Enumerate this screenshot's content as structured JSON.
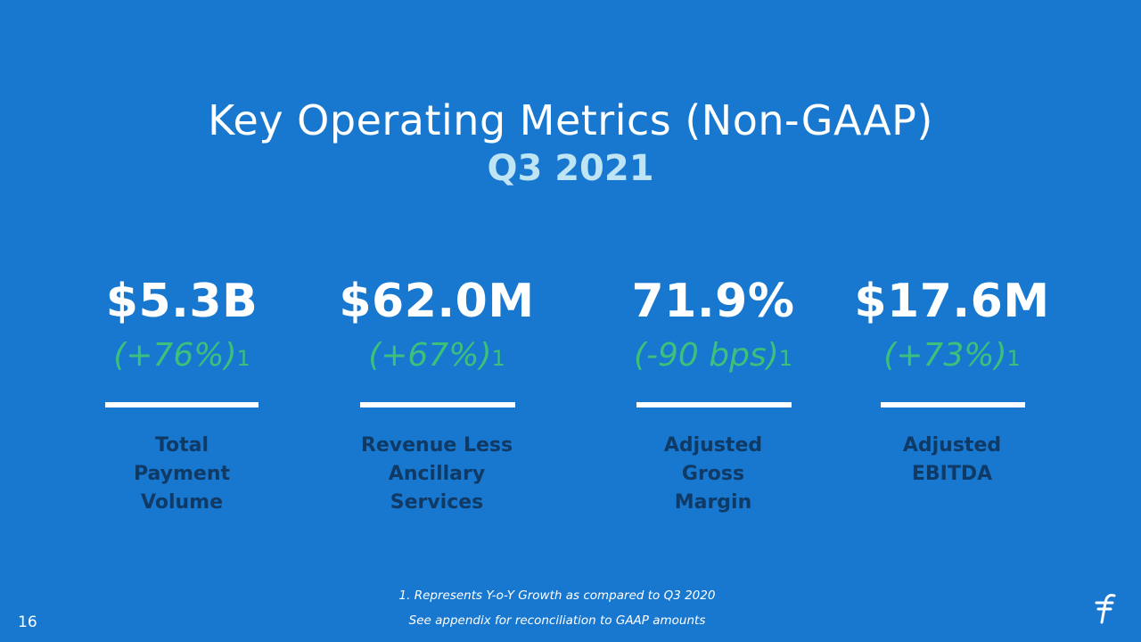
{
  "slide": {
    "title": "Key Operating Metrics (Non-GAAP)",
    "subtitle": "Q3 2021",
    "page_number": "16"
  },
  "metrics": [
    {
      "value": "$5.3B",
      "growth": "(+76%)",
      "footnote_marker": "1",
      "label_lines": [
        "Total",
        "Payment",
        "Volume"
      ]
    },
    {
      "value": "$62.0M",
      "growth": "(+67%)",
      "footnote_marker": "1",
      "label_lines": [
        "Revenue Less",
        "Ancillary",
        "Services"
      ]
    },
    {
      "value": "71.9%",
      "growth": "(-90 bps)",
      "footnote_marker": "1",
      "label_lines": [
        "Adjusted",
        "Gross",
        "Margin"
      ]
    },
    {
      "value": "$17.6M",
      "growth": "(+73%)",
      "footnote_marker": "1",
      "label_lines": [
        "Adjusted",
        "EBITDA"
      ]
    }
  ],
  "footnotes": [
    "1. Represents Y-o-Y Growth as compared to Q3 2020",
    "See appendix for reconciliation to GAAP amounts"
  ],
  "colors": {
    "background": "#1878d0",
    "title": "#ffffff",
    "subtitle": "#bfe4f4",
    "growth": "#3cc07a",
    "label": "#0f3a66"
  },
  "icons": {
    "logo": "flywire-logo-icon"
  }
}
